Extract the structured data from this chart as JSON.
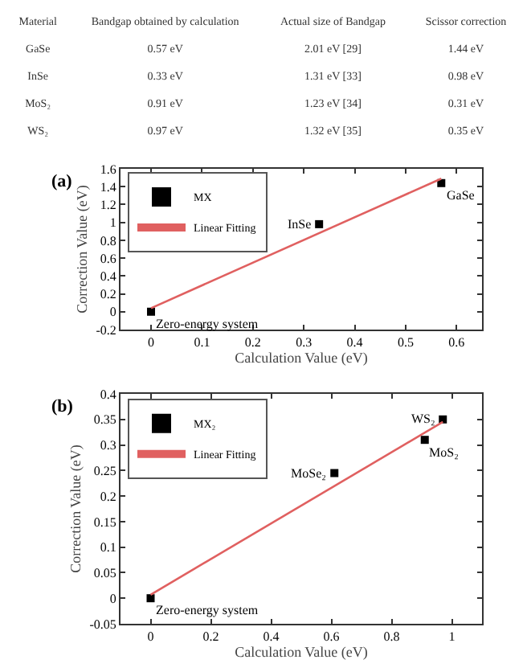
{
  "chart_data": [
    {
      "type": "other",
      "xlabel": "Material",
      "categories": [
        "GaSe",
        "InSe",
        "MoS₂",
        "WS₂"
      ],
      "series": [
        {
          "name": "Bandgap obtained by calculation",
          "values": [
            0.57,
            0.33,
            0.91,
            0.97
          ],
          "value_labels": [
            "0.57 eV",
            "0.33 eV",
            "0.91 eV",
            "0.97 eV"
          ]
        },
        {
          "name": "Actual size of Bandgap",
          "values": [
            2.01,
            1.31,
            1.23,
            1.32
          ],
          "value_labels": [
            "2.01 eV [29]",
            "1.31 eV [33]",
            "1.23 eV [34]",
            "1.32 eV [35]"
          ]
        },
        {
          "name": "Scissor correction",
          "values": [
            1.44,
            0.98,
            0.31,
            0.35
          ],
          "value_labels": [
            "1.44 eV",
            "0.98 eV",
            "0.31 eV",
            "0.35 eV"
          ]
        }
      ]
    },
    {
      "type": "scatter",
      "xlabel": "Calculation Value (eV)",
      "ylabel": "Correction Value (eV)",
      "xlim": [
        -0.06,
        0.65
      ],
      "xticks": [
        0,
        0.1,
        0.2,
        0.3,
        0.4,
        0.5,
        0.6
      ],
      "ylim": [
        -0.2,
        1.6
      ],
      "yticks": [
        -0.2,
        0,
        0.2,
        0.4,
        0.6,
        0.8,
        1.0,
        1.2,
        1.4,
        1.6
      ],
      "series": [
        {
          "name": "MX",
          "type": "scatter",
          "marker": "square",
          "color": "#000000",
          "x": [
            0,
            0.33,
            0.57
          ],
          "values": [
            0,
            0.98,
            1.44
          ]
        },
        {
          "name": "Linear Fitting",
          "type": "line",
          "marker": "none",
          "color": "#e06060",
          "x": [
            0,
            0.57
          ],
          "values": [
            0.04,
            1.49
          ]
        }
      ],
      "legend": "top left",
      "grid": false,
      "annotations": [
        "(a)",
        {
          "text": "Zero-energy system",
          "x": 0,
          "y": 0
        },
        {
          "text": "InSe",
          "x": 0.33,
          "y": 0.98
        },
        {
          "text": "GaSe",
          "x": 0.57,
          "y": 1.44
        }
      ]
    },
    {
      "type": "scatter",
      "xlabel": "Calculation Value (eV)",
      "ylabel": "Correction Value (eV)",
      "xlim": [
        -0.1,
        1.1
      ],
      "xticks": [
        0,
        0.2,
        0.4,
        0.6,
        0.8,
        1.0
      ],
      "ylim": [
        -0.05,
        0.4
      ],
      "yticks": [
        -0.05,
        0,
        0.05,
        0.1,
        0.15,
        0.2,
        0.25,
        0.3,
        0.35,
        0.4
      ],
      "series": [
        {
          "name": "MX₂",
          "type": "scatter",
          "marker": "square",
          "color": "#000000",
          "x": [
            0,
            0.61,
            0.91,
            0.97
          ],
          "values": [
            0,
            0.245,
            0.31,
            0.35
          ]
        },
        {
          "name": "Linear Fitting",
          "type": "line",
          "marker": "none",
          "color": "#e06060",
          "x": [
            0,
            0.97
          ],
          "values": [
            0.007,
            0.345
          ]
        }
      ],
      "legend": "top left",
      "grid": false,
      "annotations": [
        "(b)",
        {
          "text": "Zero-energy system",
          "x": 0,
          "y": 0
        },
        {
          "text": "MoSe₂",
          "x": 0.61,
          "y": 0.245
        },
        {
          "text": "MoS₂",
          "x": 0.91,
          "y": 0.31
        },
        {
          "text": "WS₂",
          "x": 0.97,
          "y": 0.35
        }
      ]
    }
  ]
}
